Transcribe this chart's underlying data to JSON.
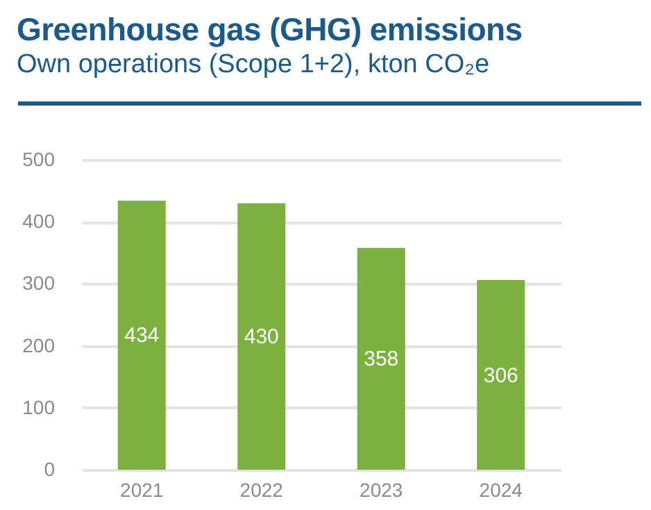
{
  "chart_data": {
    "type": "bar",
    "title": "Greenhouse gas (GHG) emissions",
    "subtitle": "Own operations (Scope 1+2), kton CO₂e",
    "categories": [
      "2021",
      "2022",
      "2023",
      "2024"
    ],
    "values": [
      434,
      430,
      358,
      306
    ],
    "color": "#7cb03f",
    "ylim": [
      0,
      500
    ],
    "yticks": [
      0,
      100,
      200,
      300,
      400,
      500
    ],
    "grid": "y",
    "data_labels": true
  }
}
